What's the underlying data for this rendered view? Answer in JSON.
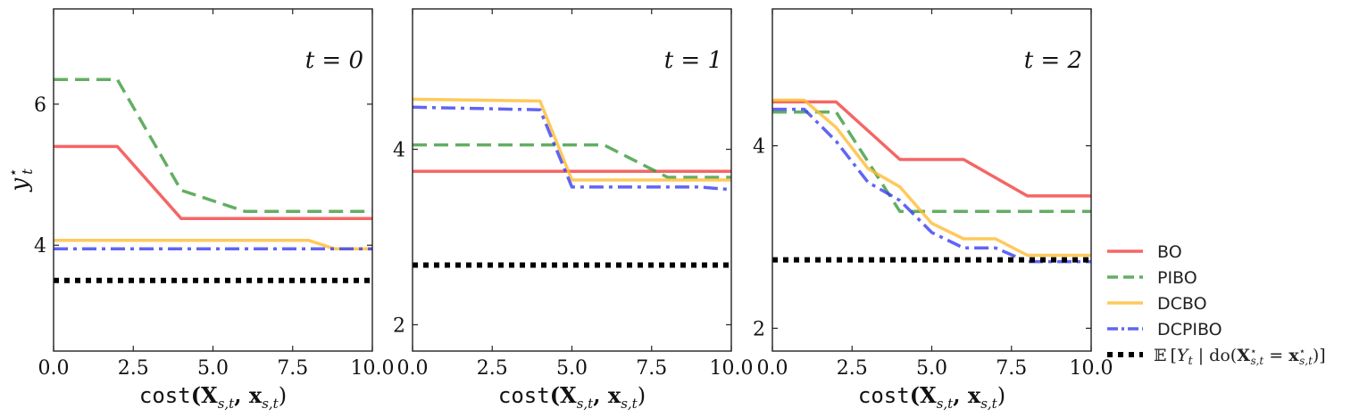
{
  "chart_data": [
    {
      "type": "line",
      "panel_label": "t = 0",
      "xlabel_parts": [
        "cost",
        "(X",
        "s,t",
        ", x",
        "s,t",
        ")"
      ],
      "ylabel": "y",
      "ylabel_sup": "⋆",
      "ylabel_sub": "t",
      "xlim": [
        0,
        10
      ],
      "ylim": [
        2.5,
        7.35
      ],
      "xticks": [
        "0.0",
        "2.5",
        "5.0",
        "7.5",
        "10.0"
      ],
      "xtick_values": [
        0,
        2.5,
        5,
        7.5,
        10
      ],
      "yticks": [
        "4",
        "6"
      ],
      "ytick_values": [
        4,
        6
      ],
      "series": [
        {
          "name": "BO",
          "x": [
            0,
            2,
            4,
            10
          ],
          "y": [
            5.4,
            5.4,
            4.38,
            4.38
          ]
        },
        {
          "name": "PIBO",
          "x": [
            0,
            2,
            4,
            6,
            10
          ],
          "y": [
            6.35,
            6.35,
            4.78,
            4.48,
            4.48
          ]
        },
        {
          "name": "DCBO",
          "x": [
            0,
            8,
            8.8,
            10
          ],
          "y": [
            4.07,
            4.07,
            3.95,
            3.95
          ]
        },
        {
          "name": "DCPIBO",
          "x": [
            0,
            10
          ],
          "y": [
            3.95,
            3.95
          ]
        },
        {
          "name": "E[Y_t | do(X*_{s,t} = x*_{s,t})]",
          "x": [
            0,
            10
          ],
          "y": [
            3.5,
            3.5
          ]
        }
      ]
    },
    {
      "type": "line",
      "panel_label": "t = 1",
      "xlabel_parts": [
        "cost",
        "(X",
        "s,t",
        ", x",
        "s,t",
        ")"
      ],
      "xlim": [
        0,
        10
      ],
      "ylim": [
        1.7,
        5.6
      ],
      "xticks": [
        "0.0",
        "2.5",
        "5.0",
        "7.5",
        "10.0"
      ],
      "xtick_values": [
        0,
        2.5,
        5,
        7.5,
        10
      ],
      "yticks": [
        "2",
        "4"
      ],
      "ytick_values": [
        2,
        4
      ],
      "series": [
        {
          "name": "BO",
          "x": [
            0,
            10
          ],
          "y": [
            3.75,
            3.75
          ]
        },
        {
          "name": "PIBO",
          "x": [
            0,
            6,
            8,
            10
          ],
          "y": [
            4.05,
            4.05,
            3.68,
            3.68
          ]
        },
        {
          "name": "DCBO",
          "x": [
            0,
            4,
            5,
            10
          ],
          "y": [
            4.57,
            4.55,
            3.65,
            3.65
          ]
        },
        {
          "name": "DCPIBO",
          "x": [
            0,
            4,
            5,
            9,
            10
          ],
          "y": [
            4.48,
            4.45,
            3.57,
            3.57,
            3.54
          ]
        },
        {
          "name": "E[Y_t | do(X*_{s,t} = x*_{s,t})]",
          "x": [
            0,
            10
          ],
          "y": [
            2.68,
            2.68
          ]
        }
      ]
    },
    {
      "type": "line",
      "panel_label": "t = 2",
      "xlabel_parts": [
        "cost",
        "(X",
        "s,t",
        ", x",
        "s,t",
        ")"
      ],
      "xlim": [
        0,
        10
      ],
      "ylim": [
        1.75,
        5.5
      ],
      "xticks": [
        "0.0",
        "2.5",
        "5.0",
        "7.5",
        "10.0"
      ],
      "xtick_values": [
        0,
        2.5,
        5,
        7.5,
        10
      ],
      "yticks": [
        "2",
        "4"
      ],
      "ytick_values": [
        2,
        4
      ],
      "series": [
        {
          "name": "BO",
          "x": [
            0,
            2,
            4,
            6,
            8,
            10
          ],
          "y": [
            4.48,
            4.48,
            3.85,
            3.85,
            3.45,
            3.45
          ]
        },
        {
          "name": "PIBO",
          "x": [
            0,
            2,
            4,
            10
          ],
          "y": [
            4.37,
            4.37,
            3.28,
            3.28
          ]
        },
        {
          "name": "DCBO",
          "x": [
            0,
            1,
            2,
            3,
            4,
            5,
            6,
            7,
            8,
            10
          ],
          "y": [
            4.5,
            4.5,
            4.2,
            3.75,
            3.55,
            3.15,
            2.98,
            2.98,
            2.8,
            2.8
          ]
        },
        {
          "name": "DCPIBO",
          "x": [
            0,
            1,
            2,
            3,
            4,
            5,
            6,
            7,
            8,
            10
          ],
          "y": [
            4.4,
            4.4,
            4.05,
            3.6,
            3.4,
            3.05,
            2.88,
            2.88,
            2.73,
            2.73
          ]
        },
        {
          "name": "E[Y_t | do(X*_{s,t} = x*_{s,t})]",
          "x": [
            0,
            10
          ],
          "y": [
            2.75,
            2.75
          ]
        }
      ]
    }
  ],
  "legend": {
    "placement": "right",
    "entries": [
      {
        "label": "BO",
        "color": "#f14040",
        "dash": "solid"
      },
      {
        "label": "PIBO",
        "color": "#3c9a3c",
        "dash": "dashed"
      },
      {
        "label": "DCBO",
        "color": "#ffbb33",
        "dash": "solid"
      },
      {
        "label": "DCPIBO",
        "color": "#3a3ff0",
        "dash": "dashdot"
      },
      {
        "label": "𝔼 [Y_t | do(X⋆_{s,t} = x⋆_{s,t})]",
        "color": "#000000",
        "dash": "dotted"
      }
    ],
    "expectation_parts": [
      "𝔼",
      "[",
      "Y",
      "t",
      " | do(",
      "X",
      "⋆",
      "s,t",
      " = ",
      "x",
      "⋆",
      "s,t",
      ")]"
    ]
  },
  "series_styles": {
    "BO": {
      "color": "#f14040",
      "dash": "solid"
    },
    "PIBO": {
      "color": "#3c9a3c",
      "dash": "dashed"
    },
    "DCBO": {
      "color": "#ffbb33",
      "dash": "solid"
    },
    "DCPIBO": {
      "color": "#3a3ff0",
      "dash": "dashdot"
    },
    "E[Y_t | do(X*_{s,t} = x*_{s,t})]": {
      "color": "#000000",
      "dash": "dotted"
    }
  }
}
